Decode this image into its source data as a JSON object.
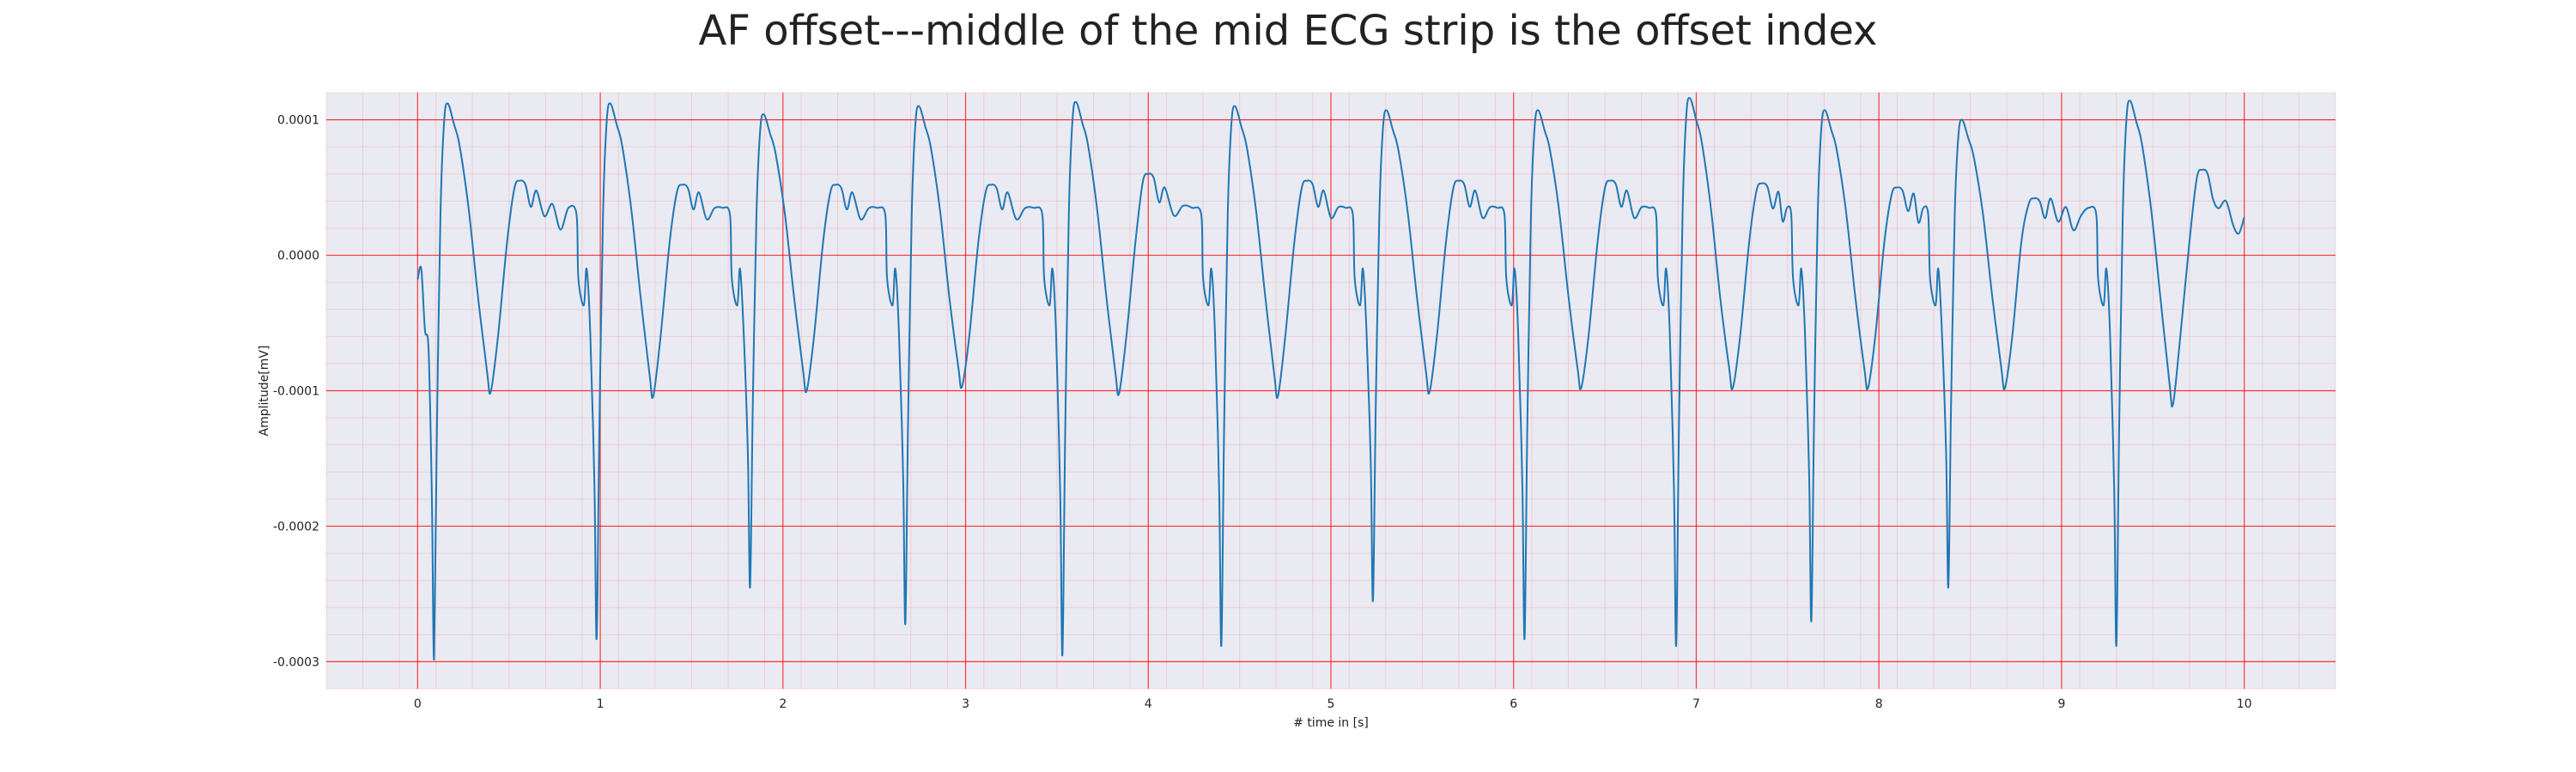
{
  "chart_data": {
    "type": "line",
    "title": "AF offset---middle of the mid ECG strip is the offset index",
    "xlabel": "# time in [s]",
    "ylabel": "Amplitude[mV]",
    "xlim": [
      -0.5,
      10.5
    ],
    "ylim": [
      -0.00032,
      0.00012
    ],
    "xticks": [
      0,
      1,
      2,
      3,
      4,
      5,
      6,
      7,
      8,
      9,
      10
    ],
    "xtick_labels": [
      "0",
      "1",
      "2",
      "3",
      "4",
      "5",
      "6",
      "7",
      "8",
      "9",
      "10"
    ],
    "yticks": [
      0.0001,
      0.0,
      -0.0001,
      -0.0002,
      -0.0003
    ],
    "ytick_labels": [
      "0.0001",
      "0.0000",
      "-0.0001",
      "-0.0002",
      "-0.0003"
    ],
    "grid": true,
    "minor_grid": true,
    "background_color": "#eaeaf2",
    "grid_color": "#ff0000",
    "line_color": "#1f77b4",
    "beats": [
      {
        "r": 0.09,
        "s": -0.000298,
        "rp": 0.000112,
        "t": 5.5e-05,
        "pre": -1.8e-05,
        "trough": -0.000101
      },
      {
        "r": 0.98,
        "s": -0.000283,
        "rp": 0.000112,
        "t": 5.2e-05,
        "pre": -2.2e-05,
        "trough": -0.000104
      },
      {
        "r": 1.82,
        "s": -0.000245,
        "rp": 0.000104,
        "t": 5.2e-05,
        "pre": -2.2e-05,
        "trough": -0.0001
      },
      {
        "r": 2.67,
        "s": -0.000272,
        "rp": 0.00011,
        "t": 5.2e-05,
        "pre": -2.2e-05,
        "trough": -9.7e-05
      },
      {
        "r": 3.53,
        "s": -0.000295,
        "rp": 0.000113,
        "t": 6e-05,
        "pre": -2.2e-05,
        "trough": -0.000102
      },
      {
        "r": 4.4,
        "s": -0.000288,
        "rp": 0.00011,
        "t": 5.5e-05,
        "pre": -2.2e-05,
        "trough": -0.000104
      },
      {
        "r": 5.23,
        "s": -0.000255,
        "rp": 0.000107,
        "t": 5.5e-05,
        "pre": -2.2e-05,
        "trough": -0.000101
      },
      {
        "r": 6.06,
        "s": -0.000283,
        "rp": 0.000107,
        "t": 5.5e-05,
        "pre": -2.2e-05,
        "trough": -9.8e-05
      },
      {
        "r": 6.89,
        "s": -0.000288,
        "rp": 0.000116,
        "t": 5.3e-05,
        "pre": -2.2e-05,
        "trough": -9.8e-05
      },
      {
        "r": 7.63,
        "s": -0.00027,
        "rp": 0.000107,
        "t": 5e-05,
        "pre": -2.2e-05,
        "trough": -9.8e-05
      },
      {
        "r": 8.38,
        "s": -0.000245,
        "rp": 0.0001,
        "t": 4.2e-05,
        "pre": -2.2e-05,
        "trough": -9.8e-05
      },
      {
        "r": 9.3,
        "s": -0.000288,
        "rp": 0.000114,
        "t": 6.3e-05,
        "pre": -2.2e-05,
        "trough": -0.00011
      }
    ],
    "start_value": -1.8e-05,
    "end_value": 2.8e-05
  }
}
